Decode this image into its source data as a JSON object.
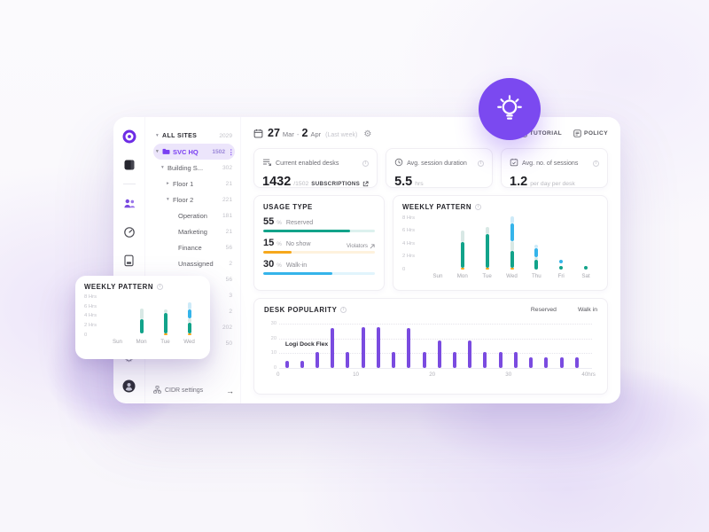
{
  "colors": {
    "teal": "#12a38a",
    "pale_teal": "#d8e8e5",
    "blue": "#35b4ea",
    "pale_blue": "#cdeaf8",
    "orange": "#f6a81c",
    "bar_purple": "#7a4be0",
    "accent_purple": "#7a3ff2",
    "checkbox_purple": "#6f42e8",
    "badge_purple": "#7b49f0"
  },
  "icons": {
    "rail": [
      "sync-logo",
      "spaces",
      "people",
      "activity",
      "kiosk",
      "cloud",
      "insights"
    ],
    "rail_bottom": [
      "settings-gear",
      "user-avatar"
    ],
    "misc": [
      "calendar",
      "gear",
      "info",
      "external-link",
      "play-square",
      "policy-doc",
      "folder",
      "kebab-menu",
      "network",
      "arrow-right",
      "lightbulb",
      "checkbox-checked"
    ]
  },
  "window": {
    "topbar": {
      "date": {
        "day1": "27",
        "mon1": "Mar",
        "dash": "-",
        "day2": "2",
        "mon2": "Apr",
        "note": "(Last week)"
      },
      "tutorial": "TUTORIAL",
      "policy": "POLICY"
    },
    "tree": {
      "items": [
        {
          "label": "ALL SITES",
          "count": "2029",
          "level": 0,
          "caret": "▾",
          "style": "root"
        },
        {
          "label": "SVC HQ",
          "count": "1502",
          "level": 0,
          "caret": "▾",
          "style": "selected",
          "folder": true,
          "kebab": true
        },
        {
          "label": "Building S...",
          "count": "302",
          "level": 1,
          "caret": "▾"
        },
        {
          "label": "Floor 1",
          "count": "21",
          "level": 2,
          "caret": "▸"
        },
        {
          "label": "Floor 2",
          "count": "221",
          "level": 2,
          "caret": "▾"
        },
        {
          "label": "Operation",
          "count": "181",
          "level": 3,
          "caret": ""
        },
        {
          "label": "Marketing",
          "count": "21",
          "level": 3,
          "caret": ""
        },
        {
          "label": "Finance",
          "count": "56",
          "level": 3,
          "caret": ""
        },
        {
          "label": "Unassigned",
          "count": "2",
          "level": 3,
          "caret": ""
        },
        {
          "label": "",
          "count": "56",
          "level": 2,
          "caret": ""
        },
        {
          "label": "",
          "count": "3",
          "level": 2,
          "caret": ""
        },
        {
          "label": "",
          "count": "2",
          "level": 2,
          "caret": ""
        },
        {
          "label": "",
          "count": "202",
          "level": 2,
          "caret": ""
        },
        {
          "label": "Unassigned",
          "count": "50",
          "level": 2,
          "caret": ""
        }
      ],
      "cidr_label": "CIDR settings",
      "cidr_arrow": "→"
    },
    "stats": [
      {
        "title": "Current enabled desks",
        "value": "1432",
        "suffix": "/1502",
        "link": "SUBSCRIPTIONS"
      },
      {
        "title": "Avg. session duration",
        "value": "5.5",
        "suffix": "hrs"
      },
      {
        "title": "Avg. no. of sessions",
        "value": "1.2",
        "suffix": "per day per desk"
      }
    ],
    "usage_type": {
      "title": "USAGE TYPE",
      "violators_label": "Violators",
      "rows": [
        {
          "pct": "55",
          "unit": "%",
          "label": "Reserved",
          "color": "teal",
          "fill": 78
        },
        {
          "pct": "15",
          "unit": "%",
          "label": "No show",
          "color": "orange",
          "fill": 25
        },
        {
          "pct": "30",
          "unit": "%",
          "label": "Walk-in",
          "color": "blue",
          "fill": 62
        }
      ]
    },
    "weekly_pattern": {
      "title": "WEEKLY PATTERN",
      "y_labels": [
        "8 Hrs",
        "6 Hrs",
        "4 Hrs",
        "2 Hrs",
        "0"
      ],
      "y_values": [
        8,
        6,
        4,
        2,
        0
      ],
      "y_max": 8.5,
      "days": [
        {
          "label": "Sun",
          "segments": []
        },
        {
          "label": "Mon",
          "segments": [
            [
              "orange",
              0,
              0.25
            ],
            [
              "teal",
              0.25,
              4.2
            ],
            [
              "pale_teal",
              4.2,
              6.0
            ]
          ]
        },
        {
          "label": "Tue",
          "segments": [
            [
              "orange",
              0,
              0.25
            ],
            [
              "teal",
              0.25,
              5.5
            ],
            [
              "pale_teal",
              5.5,
              6.6
            ]
          ]
        },
        {
          "label": "Wed",
          "segments": [
            [
              "orange",
              0,
              0.3
            ],
            [
              "teal",
              0.3,
              2.9
            ],
            [
              "pale_teal",
              2.9,
              4.4
            ],
            [
              "blue",
              4.4,
              7.1
            ],
            [
              "pale_blue",
              7.1,
              8.2
            ]
          ]
        },
        {
          "label": "Thu",
          "segments": [
            [
              "teal",
              0,
              1.5
            ],
            [
              "pale_teal",
              1.5,
              1.9
            ],
            [
              "blue",
              1.9,
              3.3
            ],
            [
              "pale_blue",
              3.3,
              3.8
            ]
          ]
        },
        {
          "label": "Fri",
          "segments": [
            [
              "teal",
              0,
              0.6
            ],
            [
              "blue",
              0.9,
              1.5
            ]
          ]
        },
        {
          "label": "Sat",
          "segments": [
            [
              "teal",
              0,
              0.5
            ]
          ]
        }
      ]
    },
    "desk_popularity": {
      "title": "DESK POPULARITY",
      "legend": [
        {
          "label": "Reserved",
          "checked": true
        },
        {
          "label": "Walk in",
          "checked": true
        }
      ],
      "annotation": "Logi Dock Flex",
      "y_ticks": [
        {
          "label": "30",
          "v": 30
        },
        {
          "label": "20",
          "v": 20
        },
        {
          "label": "10",
          "v": 10
        },
        {
          "label": "0",
          "v": 0
        }
      ],
      "y_max": 32,
      "x_ticks": [
        {
          "label": "0",
          "v": 0
        },
        {
          "label": "10",
          "v": 10
        },
        {
          "label": "20",
          "v": 20
        },
        {
          "label": "30",
          "v": 30
        },
        {
          "label": "40hrs",
          "v": 40
        }
      ],
      "x_max": 41,
      "bars": [
        {
          "x": 1,
          "h": 5
        },
        {
          "x": 3,
          "h": 5
        },
        {
          "x": 5,
          "h": 11
        },
        {
          "x": 7,
          "h": 27
        },
        {
          "x": 9,
          "h": 11
        },
        {
          "x": 11,
          "h": 28
        },
        {
          "x": 13,
          "h": 28
        },
        {
          "x": 15,
          "h": 11
        },
        {
          "x": 17,
          "h": 27
        },
        {
          "x": 19,
          "h": 11
        },
        {
          "x": 21,
          "h": 19
        },
        {
          "x": 23,
          "h": 11
        },
        {
          "x": 25,
          "h": 19
        },
        {
          "x": 27,
          "h": 11
        },
        {
          "x": 29,
          "h": 11
        },
        {
          "x": 31,
          "h": 11
        },
        {
          "x": 33,
          "h": 7
        },
        {
          "x": 35,
          "h": 7
        },
        {
          "x": 37,
          "h": 7
        },
        {
          "x": 39,
          "h": 7
        }
      ]
    }
  },
  "mini_card": {
    "title": "WEEKLY PATTERN",
    "y_labels": [
      "8 Hrs",
      "6 Hrs",
      "4 Hrs",
      "2 Hrs",
      "0"
    ],
    "y_values": [
      8,
      6,
      4,
      2,
      0
    ],
    "y_max": 8.5,
    "days": [
      {
        "label": "Sun",
        "segments": []
      },
      {
        "label": "Mon",
        "segments": [
          [
            "teal",
            0.3,
            3.4
          ],
          [
            "pale_teal",
            3.4,
            5.5
          ]
        ]
      },
      {
        "label": "Tue",
        "segments": [
          [
            "orange",
            0,
            0.3
          ],
          [
            "teal",
            0.3,
            4.6
          ],
          [
            "pale_teal",
            4.6,
            5.3
          ]
        ]
      },
      {
        "label": "Wed",
        "segments": [
          [
            "orange",
            0,
            0.4
          ],
          [
            "teal",
            0.4,
            2.6
          ],
          [
            "pale_teal",
            2.6,
            3.6
          ],
          [
            "blue",
            3.6,
            5.4
          ],
          [
            "pale_blue",
            5.4,
            6.9
          ]
        ]
      }
    ]
  },
  "chart_data": [
    {
      "type": "bar",
      "title": "USAGE TYPE",
      "categories": [
        "Reserved",
        "No show",
        "Walk-in"
      ],
      "values": [
        55,
        15,
        30
      ],
      "unit": "%"
    },
    {
      "type": "bar",
      "title": "WEEKLY PATTERN",
      "subtype": "stacked-vertical",
      "categories": [
        "Sun",
        "Mon",
        "Tue",
        "Wed",
        "Thu",
        "Fri",
        "Sat"
      ],
      "series": [
        {
          "name": "No show",
          "values": [
            0,
            0.25,
            0.25,
            0.3,
            0,
            0,
            0
          ]
        },
        {
          "name": "Reserved",
          "values": [
            0,
            3.95,
            5.25,
            2.6,
            1.5,
            0.6,
            0.5
          ]
        },
        {
          "name": "Walk-in",
          "values": [
            0,
            0,
            0,
            2.7,
            1.4,
            0.6,
            0
          ]
        }
      ],
      "ylabel": "Hrs",
      "ylim": [
        0,
        8
      ]
    },
    {
      "type": "bar",
      "title": "DESK POPULARITY",
      "x": [
        1,
        3,
        5,
        7,
        9,
        11,
        13,
        15,
        17,
        19,
        21,
        23,
        25,
        27,
        29,
        31,
        33,
        35,
        37,
        39
      ],
      "values": [
        5,
        5,
        11,
        27,
        11,
        28,
        28,
        11,
        27,
        11,
        19,
        11,
        19,
        11,
        11,
        11,
        7,
        7,
        7,
        7
      ],
      "xlabel": "hrs",
      "xlim": [
        0,
        40
      ],
      "ylim": [
        0,
        30
      ],
      "annotation": "Logi Dock Flex",
      "legend": [
        "Reserved",
        "Walk in"
      ]
    }
  ]
}
